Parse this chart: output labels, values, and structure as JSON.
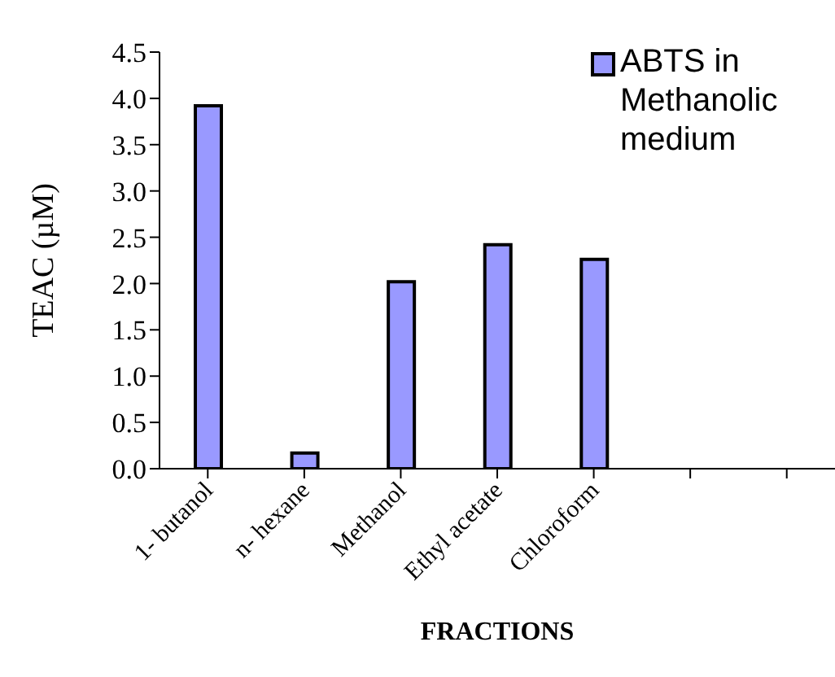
{
  "chart_data": {
    "type": "bar",
    "xlabel": "FRACTIONS",
    "ylabel": "TEAC (µM)",
    "categories": [
      "1- butanol",
      "n- hexane",
      "Methanol",
      "Ethyl acetate",
      "Chloroform",
      null,
      null
    ],
    "series": [
      {
        "name": "ABTS in Methanolic medium",
        "color": "#9999ff",
        "values": [
          3.92,
          0.17,
          2.02,
          2.42,
          2.26,
          null,
          null
        ]
      }
    ],
    "ylim": [
      0,
      4.5
    ],
    "yticks": [
      {
        "value": 0,
        "label": "0.0"
      },
      0.5,
      {
        "value": 1,
        "label": "1.0"
      },
      1.5,
      {
        "value": 2,
        "label": "2.0"
      },
      2.5,
      {
        "value": 3,
        "label": "3.0"
      },
      3.5,
      {
        "value": 4,
        "label": "4.0"
      },
      4.5
    ],
    "grid": false,
    "legend": "top right"
  }
}
